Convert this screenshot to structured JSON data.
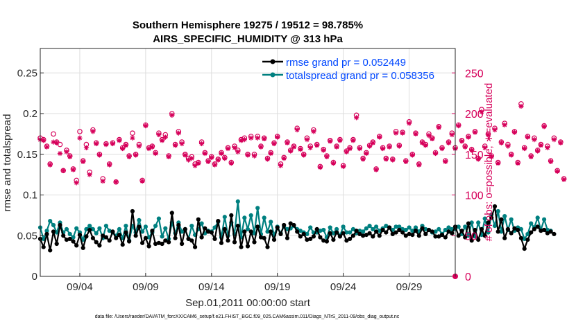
{
  "chart_data": {
    "type": "line",
    "title_line1": "Southern Hemisphere 19275 / 19512 = 98.785%",
    "title_line2": "AIRS_SPECIFIC_HUMIDITY @ 313 hPa",
    "xlabel": "Sep.01,2011 00:00:00 start",
    "ylabel_left": "rmse and totalspread",
    "ylabel_right": "# of obs: o=possible; ∗=evaluated",
    "footer": "data file: /Users/raeder/DAI/ATM_forcXX/CAM6_setup/f.e21.FHIST_BGC.f09_025.CAM6assim.011/Diags_NTrS_2011-09/obs_diag_output.nc",
    "x_range_days": [
      1,
      32.5
    ],
    "ylim_left": [
      0,
      0.28
    ],
    "ylim_right": [
      0,
      280
    ],
    "x_ticks": [
      {
        "day": 4,
        "label": "09/04"
      },
      {
        "day": 9,
        "label": "09/09"
      },
      {
        "day": 14,
        "label": "09/14"
      },
      {
        "day": 19,
        "label": "09/19"
      },
      {
        "day": 24,
        "label": "09/24"
      },
      {
        "day": 29,
        "label": "09/29"
      }
    ],
    "y_ticks_left": [
      {
        "value": 0,
        "label": "0"
      },
      {
        "value": 0.05,
        "label": "0.05"
      },
      {
        "value": 0.1,
        "label": "0.1"
      },
      {
        "value": 0.15,
        "label": "0.15"
      },
      {
        "value": 0.2,
        "label": "0.2"
      },
      {
        "value": 0.25,
        "label": "0.25"
      }
    ],
    "y_ticks_right": [
      {
        "value": 0,
        "label": "0"
      },
      {
        "value": 50,
        "label": "50"
      },
      {
        "value": 100,
        "label": "100"
      },
      {
        "value": 150,
        "label": "150"
      },
      {
        "value": 200,
        "label": "200"
      },
      {
        "value": 250,
        "label": "250"
      }
    ],
    "grid": true,
    "legend_position": "top-right",
    "colors": {
      "rmse": "#000000",
      "spread": "#008080",
      "obs": "#d6005a",
      "title": "#000000"
    },
    "series": [
      {
        "name": "rmse grand pr = 0.052449",
        "key": "rmse",
        "axis": "left",
        "x_start_day": 1.0,
        "x_step_day": 0.25,
        "values": [
          0.046,
          0.036,
          0.052,
          0.032,
          0.055,
          0.04,
          0.063,
          0.05,
          0.045,
          0.046,
          0.043,
          0.038,
          0.051,
          0.035,
          0.049,
          0.057,
          0.047,
          0.042,
          0.038,
          0.05,
          0.048,
          0.044,
          0.055,
          0.047,
          0.051,
          0.039,
          0.054,
          0.043,
          0.08,
          0.05,
          0.061,
          0.041,
          0.047,
          0.037,
          0.056,
          0.04,
          0.041,
          0.04,
          0.044,
          0.042,
          0.078,
          0.047,
          0.063,
          0.04,
          0.058,
          0.046,
          0.044,
          0.036,
          0.07,
          0.048,
          0.059,
          0.055,
          0.054,
          0.046,
          0.068,
          0.041,
          0.058,
          0.044,
          0.075,
          0.042,
          0.062,
          0.036,
          0.055,
          0.037,
          0.055,
          0.042,
          0.061,
          0.048,
          0.047,
          0.036,
          0.055,
          0.045,
          0.06,
          0.052,
          0.063,
          0.047,
          0.065,
          0.063,
          0.055,
          0.049,
          0.052,
          0.045,
          0.046,
          0.049,
          0.058,
          0.048,
          0.044,
          0.043,
          0.053,
          0.045,
          0.054,
          0.049,
          0.053,
          0.044,
          0.046,
          0.05,
          0.056,
          0.052,
          0.05,
          0.051,
          0.053,
          0.049,
          0.055,
          0.05,
          0.057,
          0.054,
          0.06,
          0.052,
          0.054,
          0.057,
          0.054,
          0.05,
          0.052,
          0.051,
          0.056,
          0.05,
          0.059,
          0.052,
          0.057,
          0.055,
          0.049,
          0.049,
          0.051,
          0.048,
          0.055,
          0.053,
          0.061,
          0.05,
          0.056,
          0.048,
          0.065,
          0.044,
          0.057,
          0.045,
          0.058,
          0.05,
          0.066,
          0.072,
          0.086,
          0.055,
          0.07,
          0.047,
          0.058,
          0.053,
          0.059,
          0.057,
          0.047,
          0.034,
          0.045,
          0.054,
          0.058,
          0.061,
          0.056,
          0.057,
          0.053,
          0.055,
          0.052
        ]
      },
      {
        "name": "totalspread grand pr = 0.058356",
        "key": "spread",
        "axis": "left",
        "x_start_day": 1.0,
        "x_step_day": 0.25,
        "values": [
          0.06,
          0.046,
          0.056,
          0.068,
          0.063,
          0.054,
          0.066,
          0.054,
          0.058,
          0.052,
          0.048,
          0.059,
          0.054,
          0.045,
          0.058,
          0.062,
          0.058,
          0.053,
          0.059,
          0.047,
          0.062,
          0.056,
          0.054,
          0.05,
          0.058,
          0.047,
          0.062,
          0.044,
          0.062,
          0.054,
          0.069,
          0.055,
          0.061,
          0.048,
          0.054,
          0.062,
          0.071,
          0.049,
          0.059,
          0.046,
          0.066,
          0.053,
          0.066,
          0.055,
          0.058,
          0.046,
          0.062,
          0.051,
          0.058,
          0.065,
          0.053,
          0.056,
          0.055,
          0.06,
          0.067,
          0.048,
          0.073,
          0.05,
          0.066,
          0.052,
          0.092,
          0.048,
          0.072,
          0.058,
          0.075,
          0.053,
          0.084,
          0.052,
          0.072,
          0.055,
          0.067,
          0.051,
          0.061,
          0.053,
          0.061,
          0.058,
          0.059,
          0.062,
          0.058,
          0.056,
          0.054,
          0.052,
          0.06,
          0.054,
          0.054,
          0.056,
          0.057,
          0.048,
          0.06,
          0.053,
          0.058,
          0.05,
          0.061,
          0.054,
          0.054,
          0.058,
          0.053,
          0.056,
          0.055,
          0.059,
          0.062,
          0.058,
          0.061,
          0.056,
          0.059,
          0.062,
          0.06,
          0.057,
          0.061,
          0.061,
          0.058,
          0.057,
          0.06,
          0.056,
          0.06,
          0.055,
          0.062,
          0.058,
          0.057,
          0.054,
          0.055,
          0.058,
          0.052,
          0.057,
          0.06,
          0.058,
          0.058,
          0.061,
          0.052,
          0.061,
          0.05,
          0.066,
          0.049,
          0.066,
          0.051,
          0.071,
          0.054,
          0.076,
          0.062,
          0.08,
          0.055,
          0.074,
          0.057,
          0.07,
          0.056,
          0.06,
          0.058,
          0.046,
          0.052,
          0.065,
          0.06,
          0.072,
          0.057,
          0.07,
          0.057,
          0.056
        ]
      },
      {
        "name": "obs possible",
        "key": "obs_possible",
        "axis": "right",
        "marker": "o",
        "x_start_day": 1.0,
        "x_step_day": 0.25,
        "values": [
          170,
          168,
          160,
          138,
          175,
          165,
          162,
          130,
          155,
          148,
          132,
          118,
          178,
          142,
          162,
          128,
          180,
          164,
          150,
          120,
          163,
          138,
          164,
          116,
          168,
          158,
          162,
          148,
          176,
          150,
          162,
          118,
          186,
          158,
          160,
          152,
          176,
          168,
          174,
          148,
          200,
          162,
          178,
          165,
          150,
          145,
          147,
          138,
          140,
          165,
          152,
          142,
          147,
          138,
          144,
          152,
          146,
          158,
          140,
          160,
          155,
          168,
          170,
          150,
          172,
          150,
          172,
          160,
          170,
          145,
          152,
          164,
          172,
          138,
          146,
          165,
          155,
          160,
          182,
          157,
          150,
          170,
          160,
          180,
          162,
          135,
          156,
          148,
          167,
          140,
          160,
          168,
          136,
          154,
          158,
          168,
          198,
          158,
          145,
          152,
          161,
          165,
          132,
          172,
          158,
          145,
          160,
          144,
          178,
          161,
          177,
          142,
          190,
          150,
          176,
          138,
          165,
          162,
          175,
          170,
          152,
          184,
          158,
          142,
          165,
          176,
          158,
          186,
          167,
          160,
          172,
          156,
          178,
          145,
          205,
          160,
          175,
          148,
          182,
          140,
          165,
          188,
          162,
          150,
          178,
          140,
          212,
          158,
          172,
          148,
          170,
          155,
          162,
          185,
          160,
          142,
          170,
          130,
          165,
          120
        ]
      },
      {
        "name": "obs evaluated",
        "key": "obs_evaluated",
        "axis": "right",
        "marker": "*",
        "x_start_day": 1.0,
        "x_step_day": 0.25,
        "values": [
          168,
          167,
          159,
          137,
          165,
          164,
          151,
          130,
          153,
          147,
          131,
          115,
          170,
          141,
          158,
          125,
          178,
          163,
          149,
          117,
          162,
          137,
          163,
          116,
          167,
          157,
          161,
          147,
          170,
          149,
          160,
          117,
          185,
          157,
          159,
          151,
          174,
          167,
          171,
          147,
          198,
          161,
          176,
          163,
          149,
          143,
          145,
          136,
          139,
          163,
          151,
          141,
          146,
          137,
          143,
          151,
          145,
          157,
          139,
          158,
          153,
          167,
          168,
          149,
          170,
          148,
          170,
          159,
          169,
          144,
          151,
          163,
          171,
          136,
          145,
          164,
          154,
          159,
          180,
          156,
          149,
          168,
          158,
          178,
          161,
          134,
          155,
          147,
          166,
          139,
          159,
          167,
          135,
          153,
          157,
          167,
          195,
          157,
          144,
          151,
          160,
          164,
          131,
          171,
          157,
          144,
          159,
          143,
          176,
          160,
          176,
          141,
          188,
          149,
          175,
          137,
          164,
          161,
          173,
          169,
          151,
          183,
          157,
          141,
          164,
          174,
          157,
          185,
          166,
          159,
          171,
          155,
          177,
          144,
          202,
          158,
          174,
          147,
          180,
          139,
          164,
          186,
          160,
          149,
          177,
          139,
          209,
          157,
          171,
          147,
          168,
          154,
          161,
          184,
          158,
          141,
          168,
          129,
          164,
          119
        ]
      }
    ]
  }
}
